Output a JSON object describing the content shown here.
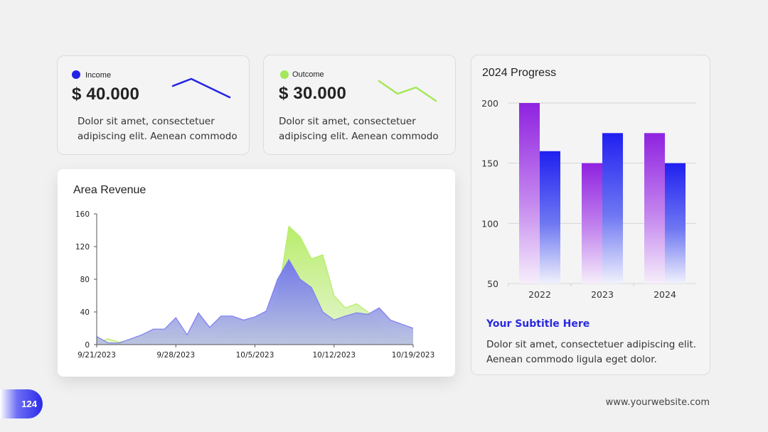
{
  "income": {
    "label": "Income",
    "value": "$ 40.000",
    "desc_line1": "Dolor sit amet, consectetuer",
    "desc_line2": "adipiscing elit. Aenean commodo",
    "color": "#2323e6"
  },
  "outcome": {
    "label": "Outcome",
    "value": "$ 30.000",
    "desc_line1": "Dolor sit amet, consectetuer",
    "desc_line2": "adipiscing elit. Aenean commodo",
    "color": "#a4e85a"
  },
  "progress": {
    "title": "2024 Progress",
    "subtitle": "Your Subtitle Here",
    "desc_line1": "Dolor sit amet, consectetuer adipiscing elit.",
    "desc_line2": "Aenean commodo ligula eget dolor."
  },
  "area": {
    "title": "Area Revenue"
  },
  "footer": {
    "page_number": "124",
    "website": "www.yourwebsite.com"
  },
  "chart_data": [
    {
      "type": "area",
      "title": "Area Revenue",
      "xlabel": "",
      "ylabel": "",
      "ylim": [
        0,
        160
      ],
      "yticks": [
        0,
        40,
        80,
        120,
        160
      ],
      "xticks": [
        "9/21/2023",
        "9/28/2023",
        "10/5/2023",
        "10/12/2023",
        "10/19/2023"
      ],
      "x": [
        "9/21/2023",
        "9/22/2023",
        "9/23/2023",
        "9/24/2023",
        "9/25/2023",
        "9/26/2023",
        "9/27/2023",
        "9/28/2023",
        "9/29/2023",
        "9/30/2023",
        "10/1/2023",
        "10/2/2023",
        "10/3/2023",
        "10/4/2023",
        "10/5/2023",
        "10/6/2023",
        "10/7/2023",
        "10/8/2023",
        "10/9/2023",
        "10/10/2023",
        "10/11/2023",
        "10/12/2023",
        "10/13/2023",
        "10/14/2023",
        "10/15/2023",
        "10/16/2023",
        "10/17/2023",
        "10/18/2023",
        "10/19/2023"
      ],
      "series": [
        {
          "color": "#7e7ef0",
          "values": [
            10,
            2,
            2,
            7,
            12,
            19,
            19,
            33,
            12,
            39,
            21,
            35,
            35,
            30,
            34,
            41,
            80,
            104,
            80,
            70,
            40,
            30,
            35,
            39,
            37,
            45,
            30,
            25,
            20
          ]
        },
        {
          "color": "#b8ec6a",
          "values": [
            2,
            7,
            3,
            6,
            10,
            14,
            12,
            16,
            12,
            8,
            5,
            12,
            18,
            22,
            28,
            35,
            55,
            145,
            132,
            105,
            110,
            60,
            45,
            50,
            40,
            22,
            12,
            8,
            9
          ]
        }
      ],
      "grid": false
    },
    {
      "type": "bar",
      "title": "2024 Progress",
      "categories": [
        "2022",
        "2023",
        "2024"
      ],
      "ylim": [
        50,
        200
      ],
      "yticks": [
        50,
        100,
        150,
        200
      ],
      "series": [
        {
          "color": "#8f22e0",
          "values": [
            200,
            150,
            175
          ]
        },
        {
          "color": "#2424f0",
          "values": [
            160,
            175,
            150
          ]
        }
      ],
      "grid": true
    }
  ]
}
